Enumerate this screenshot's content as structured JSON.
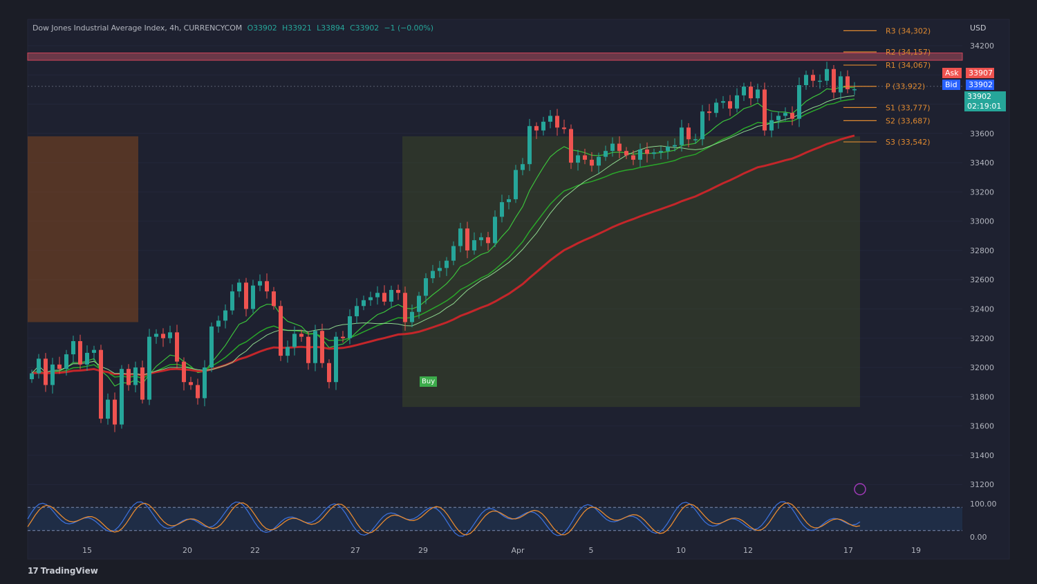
{
  "header": {
    "symbol": "Dow Jones Industrial Average Index, 4h, CURRENCYCOM",
    "open": "O33902",
    "high": "H33921",
    "low": "L33894",
    "close": "C33902",
    "change": "−1 (−0.00%)"
  },
  "currency": "USD",
  "footer": {
    "brand": "TradingView",
    "logo": "17"
  },
  "quote_tags": {
    "ask_label": "Ask",
    "ask_value": "33907",
    "bid_label": "Bid",
    "bid_value": "33902",
    "last_value": "33902",
    "countdown": "02:19:01"
  },
  "signal_label": "Buy",
  "colors": {
    "background": "#1b1d26",
    "up": "#26a69a",
    "down": "#ef5350",
    "ma_green": "#2eea2e",
    "ma_red": "#e0222a",
    "pivot": "#e08a30",
    "stoch_k": "#3b6fd8",
    "stoch_d": "#e88a30"
  },
  "chart_data": {
    "type": "candlestick",
    "y_axis": {
      "ticks": [
        31200,
        31400,
        31600,
        31800,
        32000,
        32200,
        32400,
        32600,
        32800,
        33000,
        33200,
        33400,
        33600,
        33800,
        34000,
        34200
      ],
      "range": [
        31130,
        34370
      ]
    },
    "x_axis": {
      "labels": [
        "15",
        "20",
        "22",
        "27",
        "29",
        "Apr",
        "5",
        "10",
        "12",
        "17",
        "19"
      ]
    },
    "pivots": [
      {
        "label": "R3 (34,302)",
        "value": 34302
      },
      {
        "label": "R2 (34,157)",
        "value": 34157
      },
      {
        "label": "R1 (34,067)",
        "value": 34067
      },
      {
        "label": "P (33,922)",
        "value": 33922
      },
      {
        "label": "S1 (33,777)",
        "value": 33777
      },
      {
        "label": "S2 (33,687)",
        "value": 33687
      },
      {
        "label": "S3 (33,542)",
        "value": 33542
      }
    ],
    "resistance_zone": [
      34100,
      34150
    ],
    "closes": [
      31960,
      32060,
      31880,
      32020,
      31990,
      32090,
      32180,
      32020,
      32100,
      32120,
      31650,
      31780,
      31610,
      31990,
      31880,
      32000,
      31780,
      32210,
      32230,
      32200,
      32240,
      32040,
      31900,
      31880,
      31790,
      32000,
      32280,
      32320,
      32390,
      32520,
      32580,
      32400,
      32560,
      32590,
      32520,
      32420,
      32080,
      32140,
      32230,
      32210,
      32030,
      32250,
      32030,
      31900,
      32210,
      32200,
      32350,
      32420,
      32460,
      32480,
      32510,
      32450,
      32530,
      32510,
      32310,
      32380,
      32490,
      32610,
      32660,
      32680,
      32730,
      32830,
      32950,
      32800,
      32870,
      32890,
      32850,
      33030,
      33130,
      33150,
      33350,
      33390,
      33650,
      33620,
      33680,
      33720,
      33640,
      33630,
      33400,
      33450,
      33420,
      33380,
      33440,
      33480,
      33530,
      33480,
      33450,
      33420,
      33490,
      33460,
      33470,
      33480,
      33510,
      33520,
      33640,
      33560,
      33560,
      33750,
      33740,
      33810,
      33820,
      33770,
      33860,
      33920,
      33840,
      33900,
      33620,
      33690,
      33720,
      33740,
      33700,
      33930,
      34000,
      33960,
      33960,
      34040,
      33880,
      33990,
      33902,
      33902
    ],
    "stochastic": {
      "k_label": "100.00",
      "d_label": "0.00",
      "upper": 80,
      "lower": 20
    }
  }
}
